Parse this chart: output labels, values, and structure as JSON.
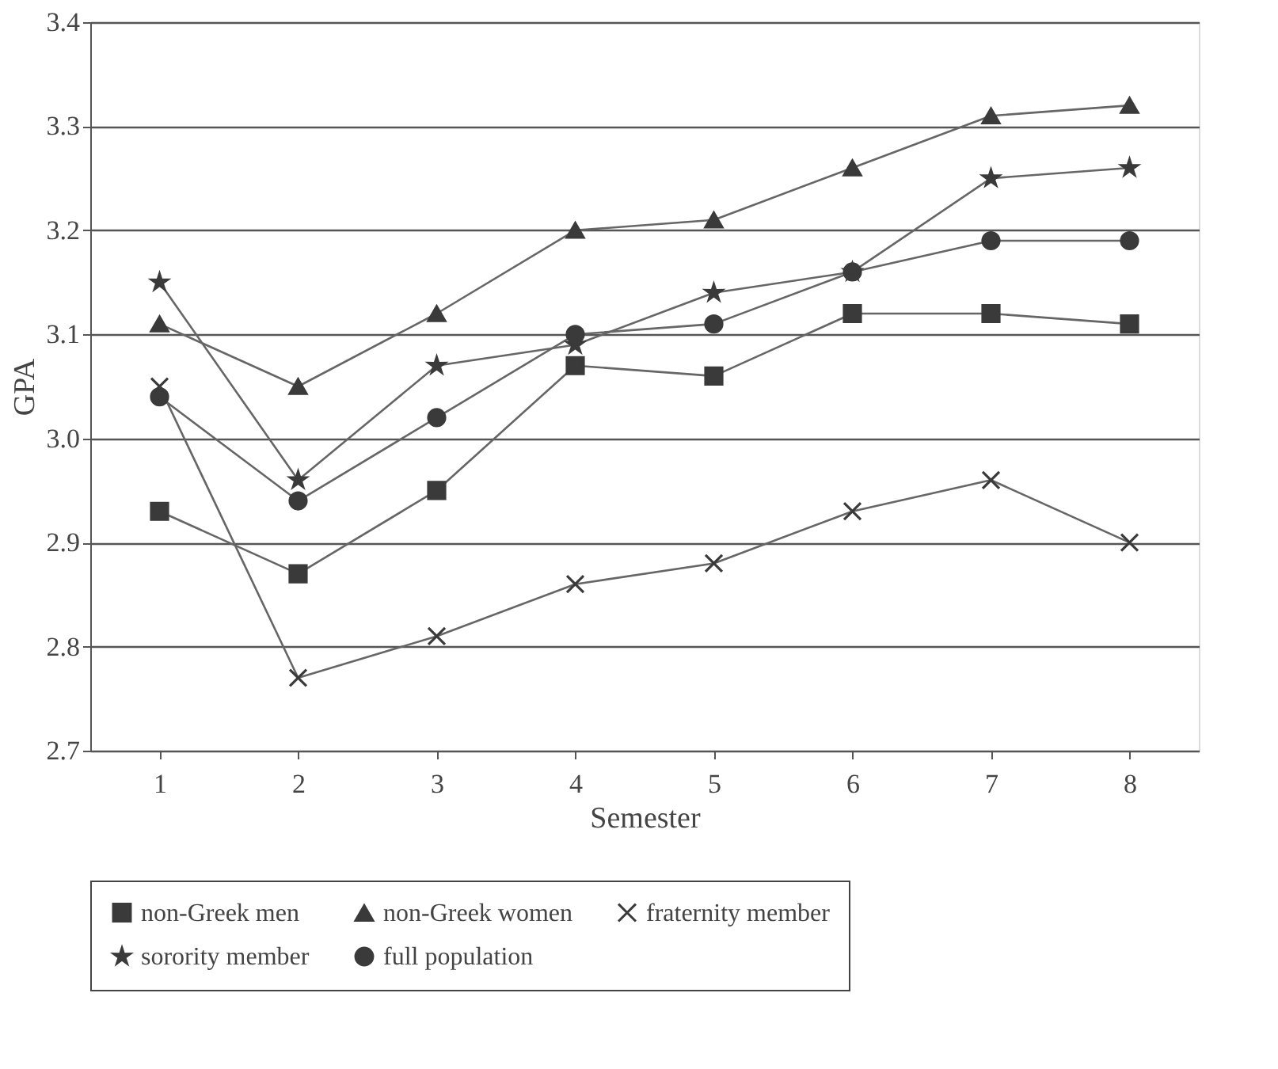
{
  "chart_data": {
    "type": "line",
    "xlabel": "Semester",
    "ylabel": "GPA",
    "categories": [
      "1",
      "2",
      "3",
      "4",
      "5",
      "6",
      "7",
      "8"
    ],
    "ylim": [
      2.7,
      3.4
    ],
    "yticks": [
      2.7,
      2.8,
      2.9,
      {
        "value": 3,
        "label": "3.0"
      },
      3.1,
      3.2,
      3.3,
      3.4
    ],
    "grid": "y",
    "legend": "bottom",
    "series": [
      {
        "name": "non-Greek men",
        "color": "#3a3a3a",
        "marker": "square",
        "values": [
          2.93,
          2.87,
          2.95,
          3.07,
          3.06,
          3.12,
          3.12,
          3.11
        ]
      },
      {
        "name": "non-Greek women",
        "color": "#3a3a3a",
        "marker": "triangle",
        "values": [
          3.11,
          3.05,
          3.12,
          3.2,
          3.21,
          3.26,
          3.31,
          3.32
        ]
      },
      {
        "name": "fraternity member",
        "color": "#3a3a3a",
        "marker": "cross",
        "values": [
          3.05,
          2.77,
          2.81,
          2.86,
          2.88,
          2.93,
          2.96,
          2.9
        ]
      },
      {
        "name": "sorority member",
        "color": "#3a3a3a",
        "marker": "star",
        "values": [
          3.15,
          2.96,
          3.07,
          3.09,
          3.14,
          3.16,
          3.25,
          3.26
        ]
      },
      {
        "name": "full population",
        "color": "#3a3a3a",
        "marker": "circle",
        "values": [
          3.04,
          2.94,
          3.02,
          3.1,
          3.11,
          3.16,
          3.19,
          3.19
        ]
      }
    ]
  }
}
